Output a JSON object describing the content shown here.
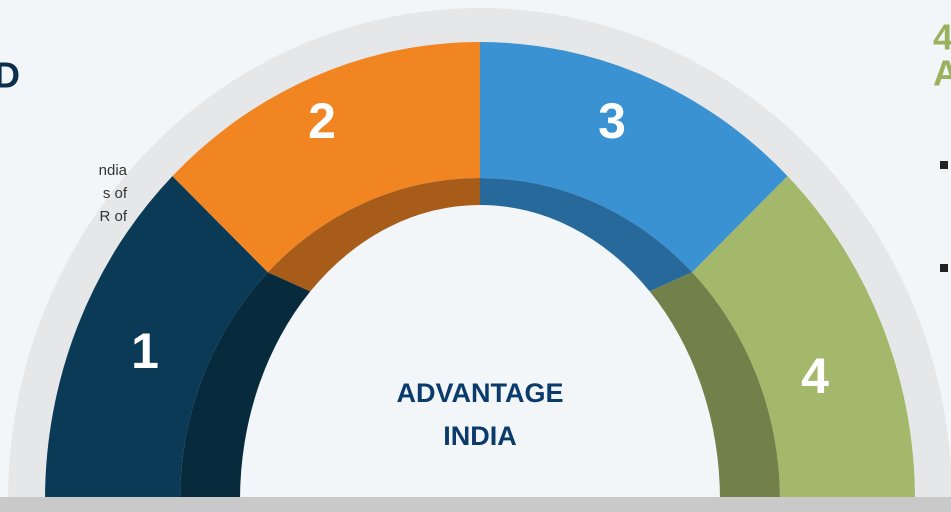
{
  "left_panel": {
    "heading": "D",
    "lines": [
      "ndia",
      "s of",
      "R of"
    ]
  },
  "right_panel": {
    "heading_lines": [
      "4",
      "A"
    ]
  },
  "dial": {
    "segments": [
      {
        "label": "1"
      },
      {
        "label": "2"
      },
      {
        "label": "3"
      },
      {
        "label": "4"
      }
    ],
    "center_lines": [
      "ADVANTAGE",
      "INDIA"
    ]
  }
}
